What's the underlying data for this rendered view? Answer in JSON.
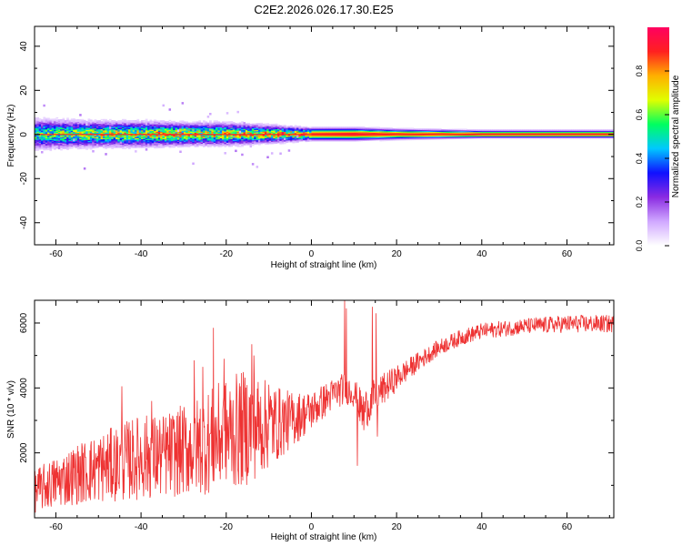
{
  "title": "C2E2.2026.026.17.30.E25",
  "colorbar": {
    "label": "Normalized spectral amplitude",
    "ticks": [
      "0.0",
      "0.2",
      "0.4",
      "0.6",
      "0.8"
    ],
    "tick_values": [
      0.0,
      0.2,
      0.4,
      0.6,
      0.8
    ],
    "range": [
      0,
      1
    ],
    "colormap": [
      "#ffffff",
      "#d0a8ff",
      "#8a2be2",
      "#1010ff",
      "#00c8ff",
      "#00ff60",
      "#e0ff00",
      "#ffb000",
      "#ff2020",
      "#ff0060"
    ]
  },
  "chart_data": [
    {
      "type": "heatmap",
      "name": "spectrogram",
      "xlabel": "Height of straight line (km)",
      "ylabel": "Frequency (Hz)",
      "xlim": [
        -65,
        71
      ],
      "ylim": [
        -50,
        49
      ],
      "xticks": [
        "-60",
        "-40",
        "-20",
        "0",
        "20",
        "40",
        "60"
      ],
      "xtick_values": [
        -60,
        -40,
        -20,
        0,
        20,
        40,
        60
      ],
      "yticks": [
        "-40",
        "-20",
        "0",
        "20",
        "40"
      ],
      "ytick_values": [
        -40,
        -20,
        0,
        20,
        40
      ],
      "center_frequency_hz": 0,
      "band": {
        "x": [
          -65,
          -50,
          -40,
          -30,
          -20,
          -10,
          0,
          10,
          20,
          40,
          71
        ],
        "halfwidth_hz": [
          6,
          5,
          5,
          4.5,
          4.5,
          3.5,
          2.5,
          2.5,
          2,
          1.5,
          1.5
        ],
        "peak_amplitude": [
          0.6,
          0.75,
          0.75,
          0.8,
          0.75,
          0.85,
          0.9,
          0.95,
          0.9,
          0.9,
          0.9
        ]
      },
      "grid": false
    },
    {
      "type": "line",
      "name": "snr",
      "xlabel": "Height of straight line (km)",
      "ylabel": "SNR (10 * v/v)",
      "xlim": [
        -65,
        71
      ],
      "ylim": [
        0,
        6700
      ],
      "xticks": [
        "-60",
        "-40",
        "-20",
        "0",
        "20",
        "40",
        "60"
      ],
      "xtick_values": [
        -60,
        -40,
        -20,
        0,
        20,
        40,
        60
      ],
      "yticks": [
        "2000",
        "4000",
        "6000"
      ],
      "ytick_values": [
        2000,
        4000,
        6000
      ],
      "color": "#ee3333",
      "envelope": {
        "x": [
          -65,
          -60,
          -55,
          -50,
          -45,
          -40,
          -35,
          -30,
          -25,
          -20,
          -15,
          -10,
          -5,
          0,
          5,
          8,
          10,
          12,
          15,
          20,
          25,
          30,
          35,
          40,
          50,
          60,
          71
        ],
        "low": [
          150,
          300,
          400,
          450,
          500,
          550,
          600,
          650,
          700,
          800,
          1000,
          1500,
          2100,
          2700,
          3300,
          3500,
          3400,
          2600,
          3200,
          3900,
          4500,
          5000,
          5300,
          5500,
          5650,
          5700,
          5700
        ],
        "high": [
          1500,
          1900,
          2300,
          2600,
          2900,
          3200,
          3200,
          3500,
          3900,
          4300,
          4600,
          4200,
          3900,
          3900,
          4300,
          4500,
          4300,
          3900,
          4300,
          4700,
          5100,
          5500,
          5800,
          6000,
          6150,
          6250,
          6250
        ]
      },
      "spikes": [
        {
          "x": -44.5,
          "y": 4050
        },
        {
          "x": -37.5,
          "y": 3600
        },
        {
          "x": -27.5,
          "y": 4850
        },
        {
          "x": -25.5,
          "y": 4650
        },
        {
          "x": -23,
          "y": 5850
        },
        {
          "x": -20.5,
          "y": 4900
        },
        {
          "x": -14,
          "y": 5350
        },
        {
          "x": -13.5,
          "y": 5000
        },
        {
          "x": -10,
          "y": 4100
        },
        {
          "x": 7.8,
          "y": 6700
        },
        {
          "x": 8.2,
          "y": 6450
        },
        {
          "x": 14.3,
          "y": 6500
        },
        {
          "x": 15.2,
          "y": 6300
        }
      ],
      "dips": [
        {
          "x": 10.8,
          "y": 1600
        },
        {
          "x": 15.5,
          "y": 2500
        },
        {
          "x": 12.3,
          "y": 2700
        }
      ],
      "grid": false
    }
  ]
}
